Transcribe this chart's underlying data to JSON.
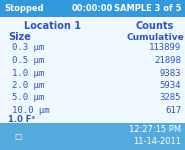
{
  "stopped": "Stopped",
  "time_display": "00:00:00",
  "sample": "SAMPLE 3 of 5",
  "location": "Location 1",
  "col1_header": "Size",
  "col2_header": "Counts",
  "col2_subheader": "Cumulative",
  "sizes": [
    "0.3 μm",
    "0.5 μm",
    "1.0 μm",
    "2.0 μm",
    "5.0 μm",
    "10.0 μm"
  ],
  "counts": [
    "113899",
    "21898",
    "9383",
    "5934",
    "3285",
    "617"
  ],
  "footer_note": "1.0 F³",
  "time": "12:27:15 PM",
  "date": "11-14-2011",
  "header_bg": "#3399dd",
  "footer_bg": "#55aadd",
  "content_bg": "#f0f8ff",
  "header_text_color": "#ffffff",
  "label_color": "#3355bb",
  "value_color": "#3355bb",
  "title_fontsize": 6.0,
  "header_fontsize": 7.0,
  "data_fontsize": 6.5,
  "footer_fontsize": 6.0
}
